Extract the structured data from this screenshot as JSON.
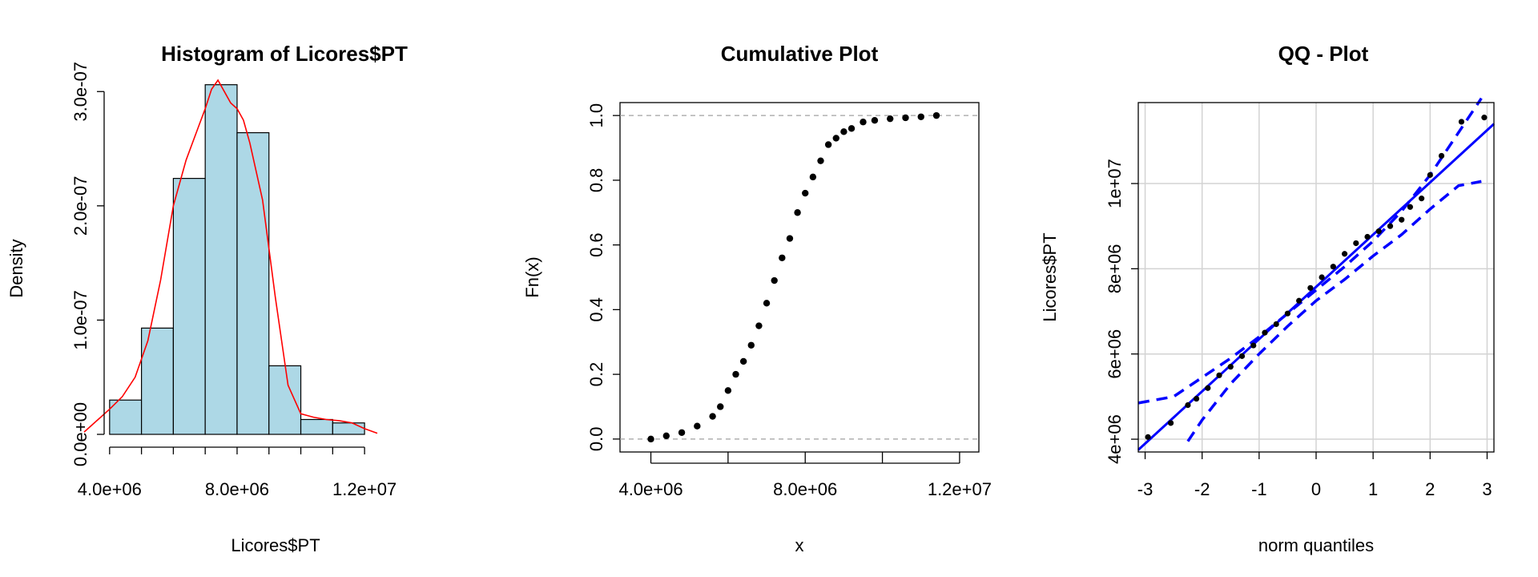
{
  "chart_data": [
    {
      "type": "bar",
      "title": "Histogram of Licores$PT",
      "xlabel": "Licores$PT",
      "ylabel": "Density",
      "x_ticks": [
        "4.0e+06",
        "8.0e+06",
        "1.2e+07"
      ],
      "x_tick_values": [
        4000000,
        8000000,
        12000000
      ],
      "y_ticks": [
        "0.0e+00",
        "1.0e-07",
        "2.0e-07",
        "3.0e-07"
      ],
      "y_tick_values": [
        0,
        1e-07,
        2e-07,
        3e-07
      ],
      "xlim": [
        3200000,
        12500000
      ],
      "ylim": [
        0,
        3.1e-07
      ],
      "bin_edges": [
        4000000,
        5000000,
        6000000,
        7000000,
        8000000,
        9000000,
        10000000,
        11000000,
        12000000
      ],
      "values": [
        3e-08,
        9.3e-08,
        2.24e-07,
        3.06e-07,
        2.64e-07,
        6e-08,
        1.3e-08,
        1e-08
      ],
      "bar_color": "#add8e6",
      "density_color": "#ff0000",
      "density_curve": {
        "x": [
          3200000,
          3600000,
          4000000,
          4400000,
          4800000,
          5200000,
          5600000,
          6000000,
          6400000,
          6800000,
          7000000,
          7200000,
          7400000,
          7600000,
          7800000,
          8000000,
          8200000,
          8400000,
          8800000,
          9200000,
          9600000,
          10000000,
          10400000,
          10800000,
          11200000,
          11600000,
          12000000,
          12400000
        ],
        "y": [
          2e-09,
          1.2e-08,
          2.2e-08,
          3.3e-08,
          5e-08,
          8.2e-08,
          1.35e-07,
          2e-07,
          2.4e-07,
          2.7e-07,
          2.85e-07,
          3.02e-07,
          3.1e-07,
          3e-07,
          2.9e-07,
          2.85e-07,
          2.75e-07,
          2.55e-07,
          2.05e-07,
          1.2e-07,
          4.3e-08,
          1.8e-08,
          1.5e-08,
          1.3e-08,
          1.2e-08,
          1e-08,
          5e-09,
          1e-09
        ]
      }
    },
    {
      "type": "scatter",
      "title": "Cumulative Plot",
      "xlabel": "x",
      "ylabel": "Fn(x)",
      "x_ticks": [
        "4.0e+06",
        "8.0e+06",
        "1.2e+07"
      ],
      "x_tick_values": [
        4000000,
        8000000,
        12000000
      ],
      "y_ticks": [
        "0.0",
        "0.2",
        "0.4",
        "0.6",
        "0.8",
        "1.0"
      ],
      "y_tick_values": [
        0,
        0.2,
        0.4,
        0.6,
        0.8,
        1.0
      ],
      "xlim": [
        3200000,
        12500000
      ],
      "ylim": [
        -0.04,
        1.04
      ],
      "reference_lines": [
        0,
        1
      ],
      "ecdf_knots": {
        "x": [
          4000000,
          4400000,
          4800000,
          5200000,
          5600000,
          5800000,
          6000000,
          6200000,
          6400000,
          6600000,
          6800000,
          7000000,
          7200000,
          7400000,
          7600000,
          7800000,
          8000000,
          8200000,
          8400000,
          8600000,
          8800000,
          9000000,
          9200000,
          9500000,
          9800000,
          10200000,
          10600000,
          11000000,
          11400000
        ],
        "y": [
          0.0,
          0.01,
          0.02,
          0.04,
          0.07,
          0.1,
          0.15,
          0.2,
          0.24,
          0.29,
          0.35,
          0.42,
          0.49,
          0.56,
          0.62,
          0.7,
          0.76,
          0.81,
          0.86,
          0.91,
          0.93,
          0.95,
          0.96,
          0.98,
          0.985,
          0.99,
          0.993,
          0.996,
          1.0
        ]
      }
    },
    {
      "type": "scatter",
      "title": "QQ - Plot",
      "xlabel": "norm quantiles",
      "ylabel": "Licores$PT",
      "x_ticks": [
        "-3",
        "-2",
        "-1",
        "0",
        "1",
        "2",
        "3"
      ],
      "x_tick_values": [
        -3,
        -2,
        -1,
        0,
        1,
        2,
        3
      ],
      "y_ticks": [
        "4e+06",
        "6e+06",
        "8e+06",
        "1e+07"
      ],
      "y_tick_values": [
        4000000,
        6000000,
        8000000,
        10000000
      ],
      "xlim": [
        -3.12,
        3.12
      ],
      "ylim": [
        3700000,
        11900000
      ],
      "grid": true,
      "point_color": "#000000",
      "line_color": "#0000ff",
      "fit_line": {
        "x": [
          -3.12,
          3.12
        ],
        "y": [
          3750000,
          11400000
        ]
      },
      "points": {
        "x": [
          -2.95,
          -2.55,
          -2.25,
          -2.1,
          -1.9,
          -1.7,
          -1.5,
          -1.3,
          -1.1,
          -0.9,
          -0.7,
          -0.5,
          -0.3,
          -0.1,
          0.1,
          0.3,
          0.5,
          0.7,
          0.9,
          1.1,
          1.3,
          1.5,
          1.65,
          1.85,
          2.0,
          2.2,
          2.55,
          2.95
        ],
        "y": [
          4050000,
          4380000,
          4800000,
          4950000,
          5200000,
          5500000,
          5700000,
          5950000,
          6200000,
          6500000,
          6700000,
          6950000,
          7250000,
          7550000,
          7800000,
          8050000,
          8350000,
          8600000,
          8750000,
          8880000,
          9000000,
          9150000,
          9450000,
          9650000,
          10200000,
          10650000,
          11450000,
          11550000
        ]
      },
      "envelope_upper": {
        "x": [
          -3.12,
          -2.5,
          -2.0,
          -1.5,
          -1.0,
          -0.5,
          0.0,
          0.5,
          1.0,
          1.5,
          2.0,
          2.5,
          2.9
        ],
        "y": [
          4850000,
          5000000,
          5450000,
          5900000,
          6400000,
          6950000,
          7500000,
          8050000,
          8650000,
          9350000,
          10200000,
          11200000,
          12000000
        ]
      },
      "envelope_lower": {
        "x": [
          -2.25,
          -2.0,
          -1.5,
          -1.0,
          -0.5,
          0.0,
          0.5,
          1.0,
          1.5,
          2.0,
          2.5,
          2.9
        ],
        "y": [
          3950000,
          4450000,
          5300000,
          6000000,
          6650000,
          7250000,
          7750000,
          8300000,
          8800000,
          9400000,
          9950000,
          10050000
        ]
      }
    }
  ]
}
